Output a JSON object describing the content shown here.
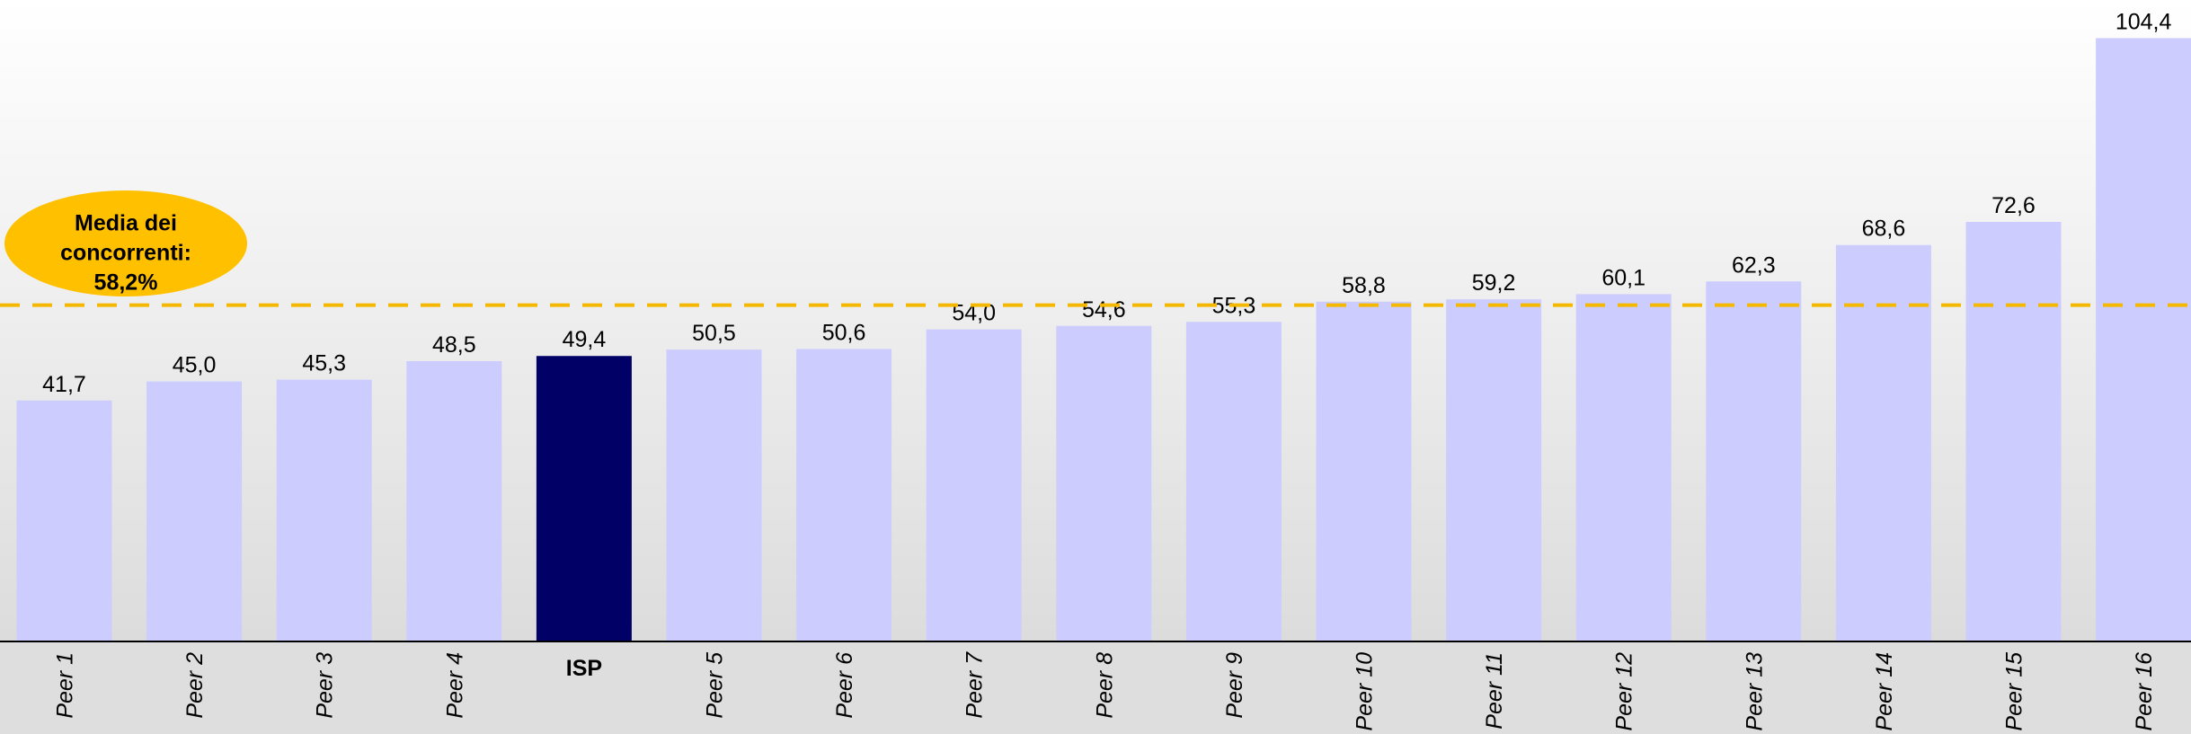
{
  "chart_data": {
    "type": "bar",
    "categories": [
      "Peer 1",
      "Peer 2",
      "Peer 3",
      "Peer 4",
      "ISP",
      "Peer 5",
      "Peer 6",
      "Peer 7",
      "Peer 8",
      "Peer 9",
      "Peer 10",
      "Peer 11",
      "Peer 12",
      "Peer 13",
      "Peer 14",
      "Peer 15",
      "Peer 16"
    ],
    "values": [
      41.7,
      45.0,
      45.3,
      48.5,
      49.4,
      50.5,
      50.6,
      54.0,
      54.6,
      55.3,
      58.8,
      59.2,
      60.1,
      62.3,
      68.6,
      72.6,
      104.4
    ],
    "value_labels": [
      "41,7",
      "45,0",
      "45,3",
      "48,5",
      "49,4",
      "50,5",
      "50,6",
      "54,0",
      "54,6",
      "55,3",
      "58,8",
      "59,2",
      "60,1",
      "62,3",
      "68,6",
      "72,6",
      "104,4"
    ],
    "colors": [
      "#ccccff",
      "#ccccff",
      "#ccccff",
      "#ccccff",
      "#000066",
      "#ccccff",
      "#ccccff",
      "#ccccff",
      "#ccccff",
      "#ccccff",
      "#ccccff",
      "#ccccff",
      "#ccccff",
      "#ccccff",
      "#ccccff",
      "#ccccff",
      "#ccccff"
    ],
    "ylim": [
      0,
      111
    ],
    "reference_line": {
      "value": 58.2,
      "color": "#f5b800",
      "label": [
        "Media dei",
        "concorrenti:",
        "58,2%"
      ],
      "label_color": "#ffc000"
    }
  }
}
